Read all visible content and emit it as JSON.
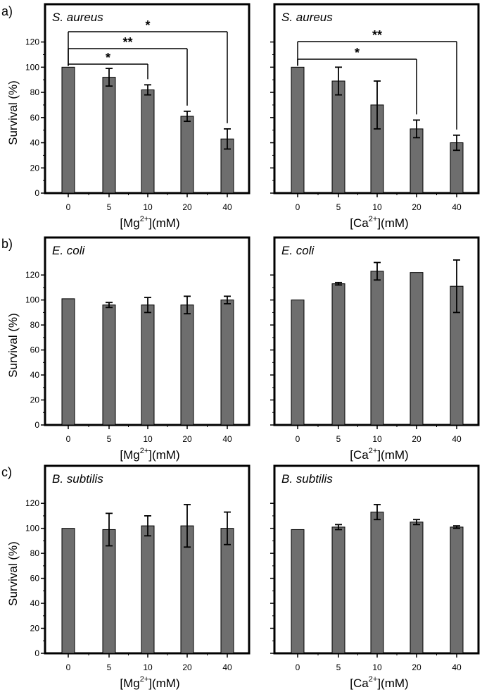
{
  "chart_data": [
    {
      "type": "bar",
      "row_label": "a)",
      "species": "S. aureus",
      "xlabel_base": "[Mg",
      "xlabel_sup": "2+",
      "xlabel_tail": "](mM)",
      "ylabel": "Survival (%)",
      "categories": [
        "0",
        "5",
        "10",
        "20",
        "40"
      ],
      "values": [
        100,
        92,
        82,
        61,
        43
      ],
      "errors": [
        0,
        7,
        4,
        4,
        8
      ],
      "ylim": [
        0,
        150
      ],
      "yticks": [
        "0",
        "20",
        "40",
        "60",
        "80",
        "100",
        "120"
      ],
      "significance": [
        {
          "from": 0,
          "to": 2,
          "label": "*"
        },
        {
          "from": 0,
          "to": 3,
          "label": "**"
        },
        {
          "from": 0,
          "to": 4,
          "label": "*"
        }
      ]
    },
    {
      "type": "bar",
      "row_label": "",
      "species": "S. aureus",
      "xlabel_base": "[Ca",
      "xlabel_sup": "2+",
      "xlabel_tail": "](mM)",
      "ylabel": "",
      "categories": [
        "0",
        "5",
        "10",
        "20",
        "40"
      ],
      "values": [
        100,
        89,
        70,
        51,
        40
      ],
      "errors": [
        0,
        11,
        19,
        7,
        6
      ],
      "ylim": [
        0,
        150
      ],
      "yticks": [],
      "significance": [
        {
          "from": 0,
          "to": 3,
          "label": "*"
        },
        {
          "from": 0,
          "to": 4,
          "label": "**"
        }
      ]
    },
    {
      "type": "bar",
      "row_label": "b)",
      "species": "E. coli",
      "xlabel_base": "[Mg",
      "xlabel_sup": "2+",
      "xlabel_tail": "](mM)",
      "ylabel": "Survival (%)",
      "categories": [
        "0",
        "5",
        "10",
        "20",
        "40"
      ],
      "values": [
        101,
        96,
        96,
        96,
        100
      ],
      "errors": [
        0,
        2,
        6,
        7,
        3
      ],
      "ylim": [
        0,
        150
      ],
      "yticks": [
        "0",
        "20",
        "40",
        "60",
        "80",
        "100",
        "120"
      ],
      "significance": []
    },
    {
      "type": "bar",
      "row_label": "",
      "species": "E. coli",
      "xlabel_base": "[Ca",
      "xlabel_sup": "2+",
      "xlabel_tail": "](mM)",
      "ylabel": "",
      "categories": [
        "0",
        "5",
        "10",
        "20",
        "40"
      ],
      "values": [
        100,
        113,
        123,
        122,
        111
      ],
      "errors": [
        0,
        1,
        7,
        0,
        21
      ],
      "ylim": [
        0,
        150
      ],
      "yticks": [],
      "significance": []
    },
    {
      "type": "bar",
      "row_label": "c)",
      "species": "B. subtilis",
      "xlabel_base": "[Mg",
      "xlabel_sup": "2+",
      "xlabel_tail": "](mM)",
      "ylabel": "Survival (%)",
      "categories": [
        "0",
        "5",
        "10",
        "20",
        "40"
      ],
      "values": [
        100,
        99,
        102,
        102,
        100
      ],
      "errors": [
        0,
        13,
        8,
        17,
        13
      ],
      "ylim": [
        0,
        150
      ],
      "yticks": [
        "0",
        "20",
        "40",
        "60",
        "80",
        "100",
        "120"
      ],
      "significance": []
    },
    {
      "type": "bar",
      "row_label": "",
      "species": "B. subtilis",
      "xlabel_base": "[Ca",
      "xlabel_sup": "2+",
      "xlabel_tail": "](mM)",
      "ylabel": "",
      "categories": [
        "0",
        "5",
        "10",
        "20",
        "40"
      ],
      "values": [
        99,
        101,
        113,
        105,
        101
      ],
      "errors": [
        0,
        2,
        6,
        2,
        1
      ],
      "ylim": [
        0,
        150
      ],
      "yticks": [],
      "significance": []
    }
  ],
  "style": {
    "bar_fill": "#6e6e6e",
    "bar_stroke": "#000000",
    "axis_color": "#000000"
  }
}
